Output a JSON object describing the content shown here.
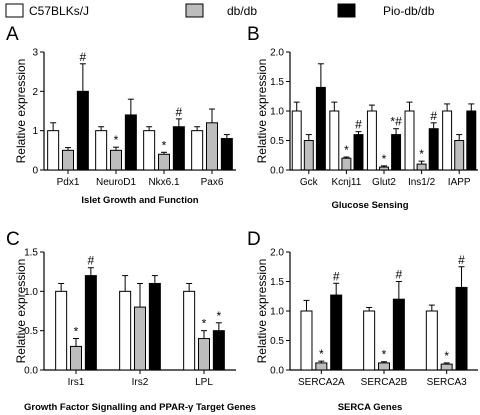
{
  "legend": [
    {
      "name": "C57BLKs/J",
      "color": "#ffffff"
    },
    {
      "name": "db/db",
      "color": "#bdbdbd"
    },
    {
      "name": "Pio-db/db",
      "color": "#000000"
    }
  ],
  "chart_data": [
    {
      "panel": "A",
      "type": "bar",
      "ylabel": "Relative expression",
      "caption": "Islet Growth and Function",
      "ylim": [
        0,
        3
      ],
      "yticks": [
        0,
        1,
        2,
        3
      ],
      "categories": [
        "Pdx1",
        "NeuroD1",
        "Nkx6.1",
        "Pax6"
      ],
      "series": [
        {
          "name": "C57BLKs/J",
          "values": [
            1.0,
            1.0,
            1.0,
            1.0
          ],
          "errors": [
            0.2,
            0.1,
            0.1,
            0.1
          ]
        },
        {
          "name": "db/db",
          "values": [
            0.5,
            0.5,
            0.4,
            1.2
          ],
          "errors": [
            0.07,
            0.08,
            0.05,
            0.35
          ],
          "sig": [
            "",
            "*",
            "*",
            ""
          ]
        },
        {
          "name": "Pio-db/db",
          "values": [
            2.0,
            1.4,
            1.1,
            0.8
          ],
          "errors": [
            0.7,
            0.4,
            0.2,
            0.1
          ],
          "sig": [
            "#",
            "",
            "#",
            ""
          ]
        }
      ]
    },
    {
      "panel": "B",
      "type": "bar",
      "ylabel": "Relative expression",
      "caption": "Glucose Sensing",
      "ylim": [
        0,
        2.0
      ],
      "yticks": [
        0.0,
        0.5,
        1.0,
        1.5,
        2.0
      ],
      "categories": [
        "Gck",
        "Kcnj11",
        "Glut2",
        "Ins1/2",
        "IAPP"
      ],
      "series": [
        {
          "name": "C57BLKs/J",
          "values": [
            1.0,
            1.0,
            1.0,
            1.0,
            1.0
          ],
          "errors": [
            0.15,
            0.15,
            0.1,
            0.15,
            0.12
          ]
        },
        {
          "name": "db/db",
          "values": [
            0.5,
            0.2,
            0.05,
            0.1,
            0.5
          ],
          "errors": [
            0.1,
            0.02,
            0.02,
            0.05,
            0.1
          ],
          "sig": [
            "",
            "*",
            "*",
            "*",
            ""
          ]
        },
        {
          "name": "Pio-db/db",
          "values": [
            1.4,
            0.6,
            0.6,
            0.7,
            1.0
          ],
          "errors": [
            0.4,
            0.05,
            0.1,
            0.1,
            0.12
          ],
          "sig": [
            "",
            "#",
            "*#",
            "#",
            ""
          ]
        }
      ]
    },
    {
      "panel": "C",
      "type": "bar",
      "ylabel": "Relative expression",
      "caption": "Growth Factor Signalling and PPAR-γ Target Genes",
      "ylim": [
        0,
        1.5
      ],
      "yticks": [
        0.0,
        0.5,
        1.0,
        1.5
      ],
      "categories": [
        "Irs1",
        "Irs2",
        "LPL"
      ],
      "series": [
        {
          "name": "C57BLKs/J",
          "values": [
            1.0,
            1.0,
            1.0
          ],
          "errors": [
            0.1,
            0.2,
            0.1
          ]
        },
        {
          "name": "db/db",
          "values": [
            0.3,
            0.8,
            0.4
          ],
          "errors": [
            0.1,
            0.3,
            0.1
          ],
          "sig": [
            "*",
            "",
            "*"
          ]
        },
        {
          "name": "Pio-db/db",
          "values": [
            1.2,
            1.1,
            0.5
          ],
          "errors": [
            0.1,
            0.1,
            0.1
          ],
          "sig": [
            "#",
            "",
            "*"
          ]
        }
      ]
    },
    {
      "panel": "D",
      "type": "bar",
      "ylabel": "Relative expression",
      "caption": "SERCA Genes",
      "ylim": [
        0,
        2.0
      ],
      "yticks": [
        0.0,
        0.5,
        1.0,
        1.5,
        2.0
      ],
      "categories": [
        "SERCA2A",
        "SERCA2B",
        "SERCA3"
      ],
      "series": [
        {
          "name": "C57BLKs/J",
          "values": [
            1.0,
            1.0,
            1.0
          ],
          "errors": [
            0.18,
            0.06,
            0.1
          ]
        },
        {
          "name": "db/db",
          "values": [
            0.12,
            0.12,
            0.1
          ],
          "errors": [
            0.03,
            0.02,
            0.02
          ],
          "sig": [
            "*",
            "*",
            "*"
          ]
        },
        {
          "name": "Pio-db/db",
          "values": [
            1.27,
            1.2,
            1.4
          ],
          "errors": [
            0.2,
            0.3,
            0.35
          ],
          "sig": [
            "#",
            "#",
            "#"
          ]
        }
      ]
    }
  ]
}
